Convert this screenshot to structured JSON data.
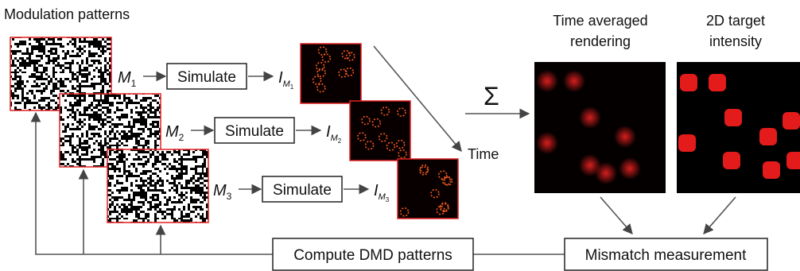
{
  "header": {
    "title": "Modulation patterns"
  },
  "rows": [
    {
      "pattern": {
        "main": "M",
        "sub": "1"
      },
      "step": "Simulate",
      "output": {
        "main": "I",
        "sub": "M",
        "subsub": "1"
      }
    },
    {
      "pattern": {
        "main": "M",
        "sub": "2"
      },
      "step": "Simulate",
      "output": {
        "main": "I",
        "sub": "M",
        "subsub": "2"
      }
    },
    {
      "pattern": {
        "main": "M",
        "sub": "3"
      },
      "step": "Simulate",
      "output": {
        "main": "I",
        "sub": "M",
        "subsub": "3"
      }
    }
  ],
  "time_label": "Time",
  "sum_symbol": "Σ",
  "rendering": {
    "line1": "Time averaged",
    "line2": "rendering"
  },
  "target": {
    "line1": "2D target",
    "line2": "intensity"
  },
  "compute_box": "Compute DMD patterns",
  "mismatch_box": "Mismatch measurement"
}
